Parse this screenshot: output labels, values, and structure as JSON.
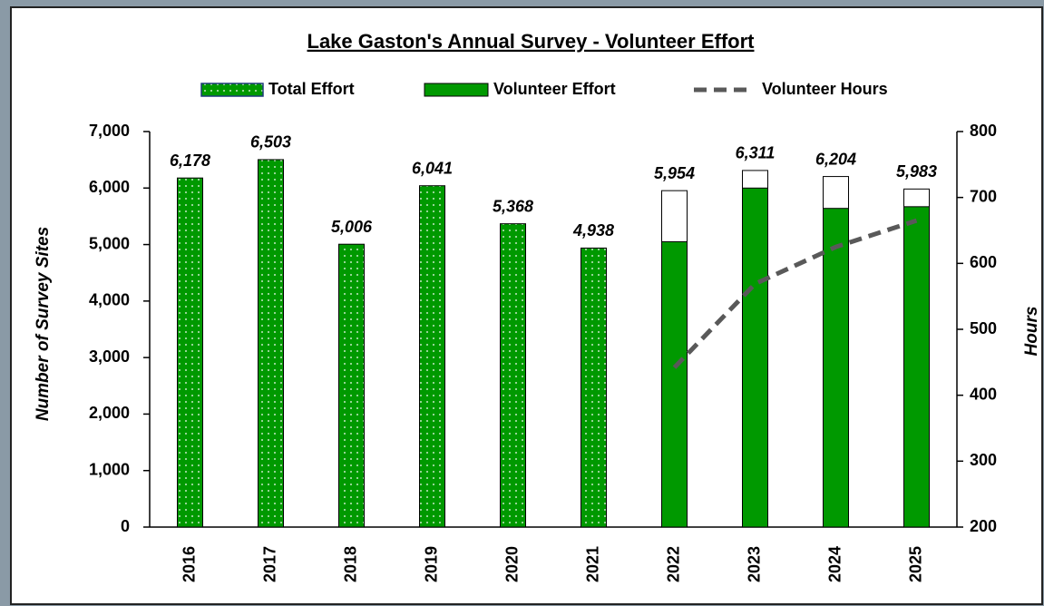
{
  "chart_data": {
    "type": "bar",
    "title": "Lake Gaston's Annual Survey - Volunteer Effort",
    "categories": [
      "2016",
      "2017",
      "2018",
      "2019",
      "2020",
      "2021",
      "2022",
      "2023",
      "2024",
      "2025"
    ],
    "series": [
      {
        "name": "Total Effort",
        "color": "#009900",
        "pattern": "dots",
        "values": [
          6178,
          6503,
          5006,
          6041,
          5368,
          4938,
          5954,
          6311,
          6204,
          5983
        ],
        "value_labels": [
          "6,178",
          "6,503",
          "5,006",
          "6,041",
          "5,368",
          "4,938",
          "5,954",
          "6,311",
          "6,204",
          "5,983"
        ]
      },
      {
        "name": "Volunteer Effort",
        "color": "#009900",
        "values": [
          null,
          null,
          null,
          null,
          null,
          null,
          5050,
          6000,
          5640,
          5670
        ]
      },
      {
        "name": "Volunteer Hours",
        "color": "#595959",
        "type": "line",
        "dashed": true,
        "axis": "y2",
        "values": [
          null,
          null,
          null,
          null,
          null,
          null,
          442,
          569,
          625,
          665
        ]
      }
    ],
    "ylabel": "Number of Survey Sites",
    "y2label": "Hours",
    "ylim": [
      0,
      7000
    ],
    "yticks": [
      0,
      {
        "value": 1000,
        "label": "1,000"
      },
      {
        "value": 2000,
        "label": "2,000"
      },
      {
        "value": 3000,
        "label": "3,000"
      },
      {
        "value": 4000,
        "label": "4,000"
      },
      {
        "value": 5000,
        "label": "5,000"
      },
      {
        "value": 6000,
        "label": "6,000"
      },
      {
        "value": 7000,
        "label": "7,000"
      }
    ],
    "y2lim": [
      200,
      800
    ],
    "y2ticks": [
      200,
      300,
      400,
      500,
      600,
      700,
      800
    ],
    "legend": "top"
  }
}
